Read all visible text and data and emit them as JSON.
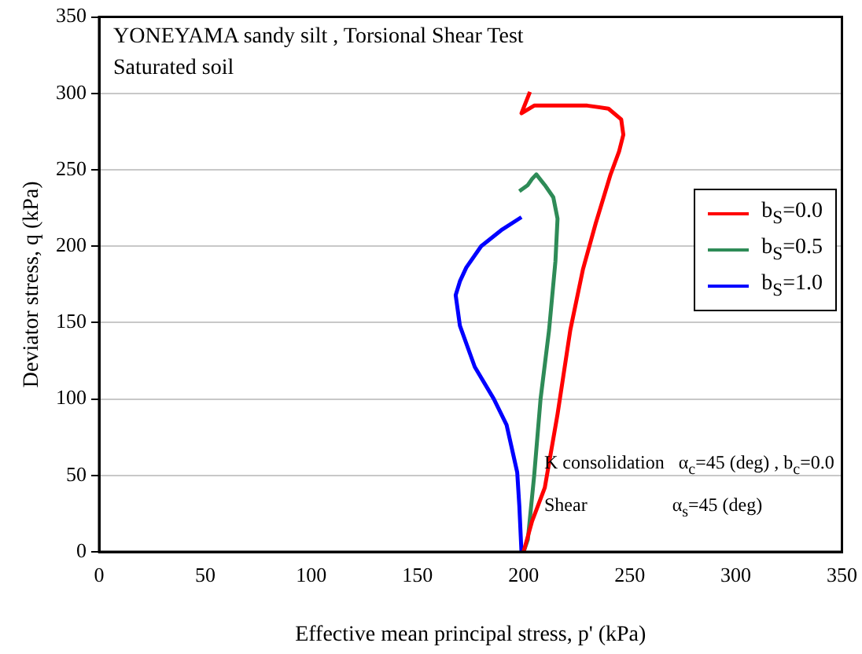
{
  "chart_data": {
    "type": "line",
    "title": "YONEYAMA sandy silt , Torsional Shear Test",
    "subtitle": "Saturated soil",
    "xlabel": "Effective mean principal stress, p' (kPa)",
    "ylabel": "Deviator stress, q (kPa)",
    "xlim": [
      0,
      350
    ],
    "ylim": [
      0,
      350
    ],
    "xticks": [
      0,
      50,
      100,
      150,
      200,
      250,
      300,
      350
    ],
    "yticks": [
      0,
      50,
      100,
      150,
      200,
      250,
      300,
      350
    ],
    "grid": "y",
    "legend": "right",
    "marker": "none",
    "line_style": "solid",
    "annotations": [
      "K consolidation   α$_{c}$=45 (deg) , b$_{c}$=0.0",
      "Shear                  α$_{s}$=45 (deg)"
    ],
    "series": [
      {
        "name": "b$_{S}$=0.0",
        "color": "#ff0000",
        "x": [
          200,
          204,
          210,
          216,
          222,
          228,
          234,
          241,
          245,
          247,
          246,
          240,
          230,
          219,
          205,
          199,
          203
        ],
        "values": [
          0,
          20,
          42,
          90,
          145,
          185,
          215,
          247,
          262,
          273,
          283,
          290,
          292,
          292,
          292,
          287,
          301
        ]
      },
      {
        "name": "b$_{S}$=0.5",
        "color": "#2e8b57",
        "x": [
          200,
          202,
          205,
          208,
          212,
          215,
          216,
          214,
          210,
          206,
          204,
          202,
          198
        ],
        "values": [
          0,
          8,
          50,
          100,
          145,
          190,
          218,
          232,
          240,
          247,
          244,
          240,
          236
        ]
      },
      {
        "name": "b$_{S}$=1.0",
        "color": "#0000ff",
        "x": [
          199,
          198,
          197,
          192,
          186,
          177,
          170,
          168,
          170,
          173,
          180,
          190,
          199
        ],
        "values": [
          0,
          30,
          52,
          83,
          100,
          121,
          148,
          168,
          177,
          186,
          200,
          211,
          219
        ]
      }
    ]
  }
}
